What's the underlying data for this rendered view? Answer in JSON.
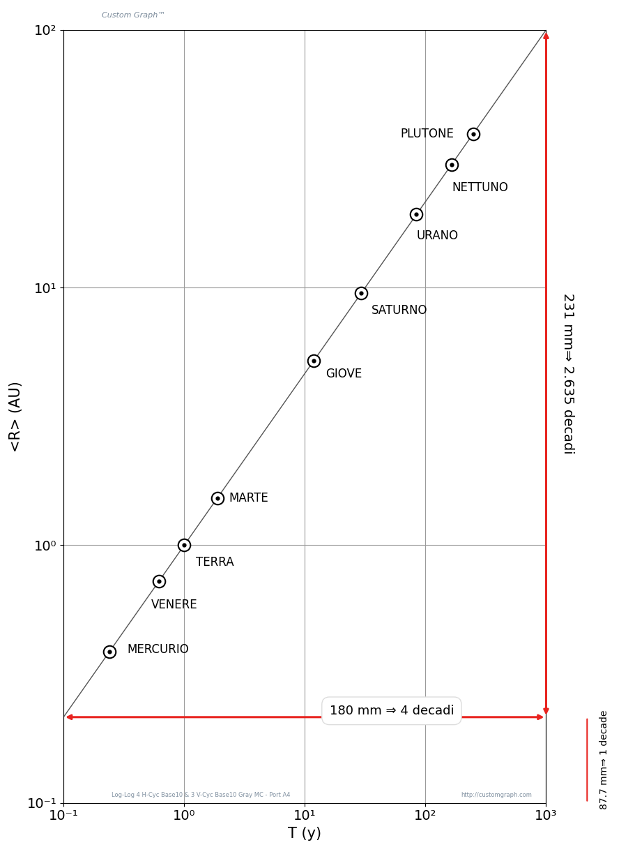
{
  "chart_data": {
    "type": "scatter",
    "header": "Custom Graph™",
    "x_label": "T (y)",
    "y_label": "<R> (AU)",
    "log": true,
    "grid": true,
    "xlim": [
      0.1,
      1000
    ],
    "ylim": [
      0.1,
      100
    ],
    "xticks": [
      {
        "value": 0.1,
        "label": "10⁻¹"
      },
      {
        "value": 1,
        "label": "10⁰"
      },
      {
        "value": 10,
        "label": "10¹"
      },
      {
        "value": 100,
        "label": "10²"
      },
      {
        "value": 1000,
        "label": "10³"
      }
    ],
    "yticks": [
      {
        "value": 0.1,
        "label": "10⁻¹"
      },
      {
        "value": 1,
        "label": "10⁰"
      },
      {
        "value": 10,
        "label": "10¹"
      },
      {
        "value": 100,
        "label": "10²"
      }
    ],
    "point_labels": [
      "MERCURIO",
      "VENERE",
      "TERRA",
      "MARTE",
      "GIOVE",
      "SATURNO",
      "URANO",
      "NETTUNO",
      "PLUTONE"
    ],
    "x": [
      0.24,
      0.615,
      1.0,
      1.88,
      11.86,
      29.46,
      84.0,
      164.8,
      248.0
    ],
    "values": [
      0.387,
      0.723,
      1.0,
      1.52,
      5.2,
      9.54,
      19.2,
      30.06,
      39.5
    ],
    "color": "#000000",
    "marker": "o",
    "fit_line": {
      "type": "line",
      "x": [
        0.1,
        1000
      ],
      "values": [
        0.215,
        100
      ],
      "color": "#555555",
      "line_style": "solid"
    },
    "annotations": {
      "horizontal": "180 mm ⇒ 4 decadi",
      "vertical": "231 mm⇒ 2.635 decadi",
      "decade": "87.7 mm⇒ 1 decade",
      "color": "#e8231f"
    },
    "footer": [
      "Log-Log 4 H-Cyc Base10 & 3 V-Cyc Base10 Gray MC - Port A4",
      "http://customgraph.com"
    ]
  }
}
